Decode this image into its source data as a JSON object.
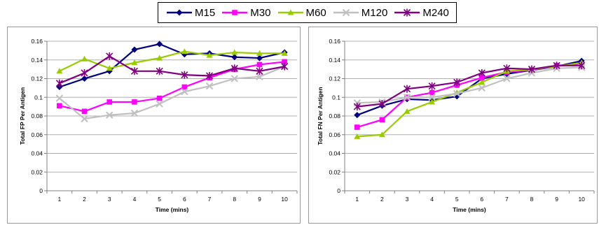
{
  "legend": {
    "items": [
      {
        "name": "M15",
        "color": "#000080",
        "marker": "diamond"
      },
      {
        "name": "M30",
        "color": "#ff00ff",
        "marker": "square"
      },
      {
        "name": "M60",
        "color": "#99cc00",
        "marker": "triangle"
      },
      {
        "name": "M120",
        "color": "#c0c0c0",
        "marker": "x"
      },
      {
        "name": "M240",
        "color": "#800080",
        "marker": "asterisk"
      }
    ],
    "placement": "top"
  },
  "chart_data": [
    {
      "type": "line",
      "xlabel": "Time (mins)",
      "ylabel": "Total FP Per Antigen",
      "x": [
        1,
        2,
        3,
        4,
        5,
        6,
        7,
        8,
        9,
        10
      ],
      "ylim": [
        0,
        0.16
      ],
      "yticks": [
        "0",
        "0.02",
        "0.04",
        "0.06",
        "0.08",
        "0.1",
        "0.12",
        "0.14",
        "0.16"
      ],
      "grid": true,
      "series": [
        {
          "name": "M15",
          "values": [
            0.111,
            0.12,
            0.128,
            0.151,
            0.157,
            0.146,
            0.147,
            0.143,
            0.142,
            0.148
          ]
        },
        {
          "name": "M30",
          "values": [
            0.091,
            0.085,
            0.095,
            0.095,
            0.099,
            0.111,
            0.121,
            0.13,
            0.135,
            0.138
          ]
        },
        {
          "name": "M60",
          "values": [
            0.128,
            0.141,
            0.131,
            0.137,
            0.142,
            0.149,
            0.145,
            0.148,
            0.147,
            0.147
          ]
        },
        {
          "name": "M120",
          "values": [
            0.099,
            0.077,
            0.081,
            0.083,
            0.093,
            0.106,
            0.112,
            0.12,
            0.122,
            0.133
          ]
        },
        {
          "name": "M240",
          "values": [
            0.115,
            0.126,
            0.144,
            0.128,
            0.128,
            0.124,
            0.123,
            0.131,
            0.128,
            0.133
          ]
        }
      ]
    },
    {
      "type": "line",
      "xlabel": "Time (mins)",
      "ylabel": "Total FN Per Antigen",
      "x": [
        1,
        2,
        3,
        4,
        5,
        6,
        7,
        8,
        9,
        10
      ],
      "ylim": [
        0,
        0.16
      ],
      "yticks": [
        "0",
        "0.02",
        "0.04",
        "0.06",
        "0.08",
        "0.1",
        "0.12",
        "0.14",
        "0.16"
      ],
      "grid": true,
      "series": [
        {
          "name": "M15",
          "values": [
            0.081,
            0.091,
            0.098,
            0.097,
            0.101,
            0.12,
            0.125,
            0.129,
            0.133,
            0.139
          ]
        },
        {
          "name": "M30",
          "values": [
            0.068,
            0.076,
            0.1,
            0.105,
            0.113,
            0.121,
            0.127,
            0.129,
            0.134,
            0.135
          ]
        },
        {
          "name": "M60",
          "values": [
            0.058,
            0.06,
            0.085,
            0.095,
            0.105,
            0.116,
            0.128,
            0.13,
            0.133,
            0.137
          ]
        },
        {
          "name": "M120",
          "values": [
            0.094,
            0.095,
            0.1,
            0.1,
            0.104,
            0.11,
            0.12,
            0.126,
            0.131,
            0.132
          ]
        },
        {
          "name": "M240",
          "values": [
            0.09,
            0.093,
            0.109,
            0.112,
            0.116,
            0.126,
            0.131,
            0.13,
            0.134,
            0.134
          ]
        }
      ]
    }
  ]
}
